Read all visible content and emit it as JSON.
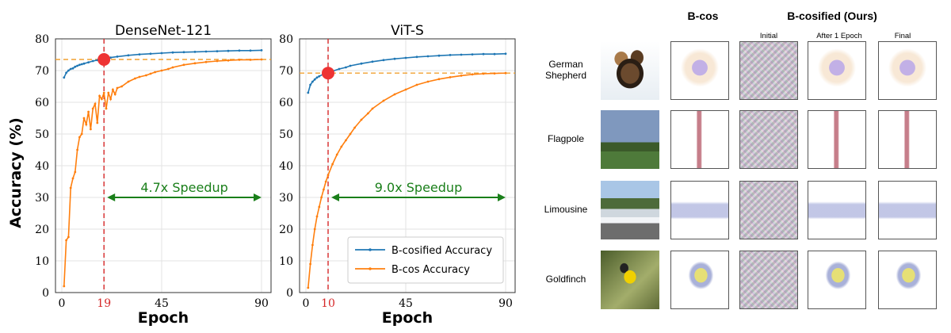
{
  "left_figure": {
    "ylabel": "Accuracy (%)",
    "xlabel": "Epoch",
    "legend": [
      "B-cosified Accuracy",
      "B-cos Accuracy"
    ],
    "colors": {
      "bcosified": "#1f77b4",
      "bcos": "#ff7f0e",
      "threshold": "#f0a030",
      "crossover": "#d62728",
      "speedup": "#1a7f1a",
      "highlight_dot": "#ee3333"
    }
  },
  "chart_data": [
    {
      "type": "line",
      "title": "DenseNet-121",
      "ylim": [
        0,
        80
      ],
      "xlim": [
        0,
        90
      ],
      "yticks": [
        0,
        10,
        20,
        30,
        40,
        50,
        60,
        70,
        80
      ],
      "xticks": [
        "0",
        "19",
        "45",
        "90"
      ],
      "highlight_tick": "19",
      "speedup_label": "4.7x Speedup",
      "threshold_value": 73.5,
      "crossover_epoch": 19,
      "series": [
        {
          "name": "B-cosified Accuracy",
          "x": [
            1,
            2,
            3,
            4,
            5,
            6,
            7,
            8,
            9,
            10,
            12,
            14,
            16,
            18,
            19,
            20,
            22,
            25,
            30,
            35,
            40,
            45,
            50,
            55,
            60,
            65,
            70,
            75,
            80,
            85,
            90
          ],
          "values": [
            67.8,
            69.3,
            70.0,
            70.5,
            70.7,
            71.2,
            71.5,
            71.8,
            72.0,
            72.2,
            72.6,
            73.0,
            73.3,
            73.5,
            73.6,
            73.8,
            74.1,
            74.4,
            74.8,
            75.1,
            75.3,
            75.5,
            75.7,
            75.8,
            75.9,
            76.0,
            76.1,
            76.2,
            76.3,
            76.3,
            76.4
          ]
        },
        {
          "name": "B-cos Accuracy",
          "x": [
            1,
            2,
            3,
            4,
            5,
            6,
            7,
            8,
            9,
            10,
            11,
            12,
            13,
            14,
            15,
            16,
            17,
            18,
            19,
            20,
            21,
            22,
            23,
            24,
            25,
            27,
            30,
            33,
            35,
            38,
            40,
            42,
            45,
            48,
            50,
            55,
            60,
            65,
            70,
            75,
            80,
            85,
            90
          ],
          "values": [
            2.0,
            16.5,
            17.5,
            33.0,
            36.0,
            38.0,
            45.0,
            49.0,
            50.0,
            55.0,
            53.0,
            57.0,
            51.5,
            58.0,
            59.5,
            53.5,
            62.0,
            61.0,
            63.0,
            58.0,
            63.0,
            61.0,
            64.0,
            62.5,
            64.5,
            65.0,
            66.5,
            67.5,
            68.0,
            68.5,
            69.0,
            69.5,
            70.0,
            70.5,
            71.0,
            71.8,
            72.3,
            72.7,
            73.0,
            73.2,
            73.4,
            73.4,
            73.5
          ]
        }
      ]
    },
    {
      "type": "line",
      "title": "ViT-S",
      "ylim": [
        0,
        80
      ],
      "xlim": [
        0,
        90
      ],
      "yticks": [
        0,
        10,
        20,
        30,
        40,
        50,
        60,
        70,
        80
      ],
      "xticks": [
        "0",
        "10",
        "45",
        "90"
      ],
      "highlight_tick": "10",
      "speedup_label": "9.0x Speedup",
      "threshold_value": 69.2,
      "crossover_epoch": 10,
      "series": [
        {
          "name": "B-cosified Accuracy",
          "x": [
            1,
            2,
            3,
            4,
            5,
            6,
            8,
            10,
            12,
            15,
            18,
            20,
            25,
            30,
            35,
            40,
            45,
            50,
            55,
            60,
            65,
            70,
            75,
            80,
            85,
            90
          ],
          "values": [
            63.0,
            65.5,
            66.5,
            67.2,
            67.8,
            68.2,
            68.9,
            69.3,
            69.8,
            70.5,
            71.0,
            71.5,
            72.2,
            72.8,
            73.3,
            73.7,
            74.0,
            74.3,
            74.5,
            74.7,
            74.9,
            75.0,
            75.1,
            75.2,
            75.2,
            75.3
          ]
        },
        {
          "name": "B-cos Accuracy",
          "x": [
            1,
            2,
            3,
            4,
            5,
            6,
            7,
            8,
            9,
            10,
            12,
            14,
            16,
            18,
            20,
            22,
            25,
            28,
            30,
            35,
            40,
            45,
            50,
            55,
            60,
            65,
            70,
            75,
            80,
            85,
            90
          ],
          "values": [
            1.5,
            9.0,
            15.0,
            20.0,
            24.0,
            27.0,
            30.0,
            32.5,
            35.0,
            37.0,
            40.5,
            43.5,
            46.0,
            48.0,
            50.0,
            52.0,
            54.5,
            56.5,
            58.0,
            60.5,
            62.5,
            64.0,
            65.5,
            66.5,
            67.3,
            67.9,
            68.4,
            68.8,
            69.0,
            69.1,
            69.2
          ]
        }
      ]
    }
  ],
  "grid": {
    "headers": {
      "bcos": "B-cos",
      "bcosified": "B-cosified (Ours)"
    },
    "subheaders": [
      "Initial",
      "After 1 Epoch",
      "Final"
    ],
    "rows": [
      {
        "label_line1": "German",
        "label_line2": "Shepherd"
      },
      {
        "label_line1": "Flagpole",
        "label_line2": ""
      },
      {
        "label_line1": "Limousine",
        "label_line2": ""
      },
      {
        "label_line1": "Goldfinch",
        "label_line2": ""
      }
    ]
  }
}
